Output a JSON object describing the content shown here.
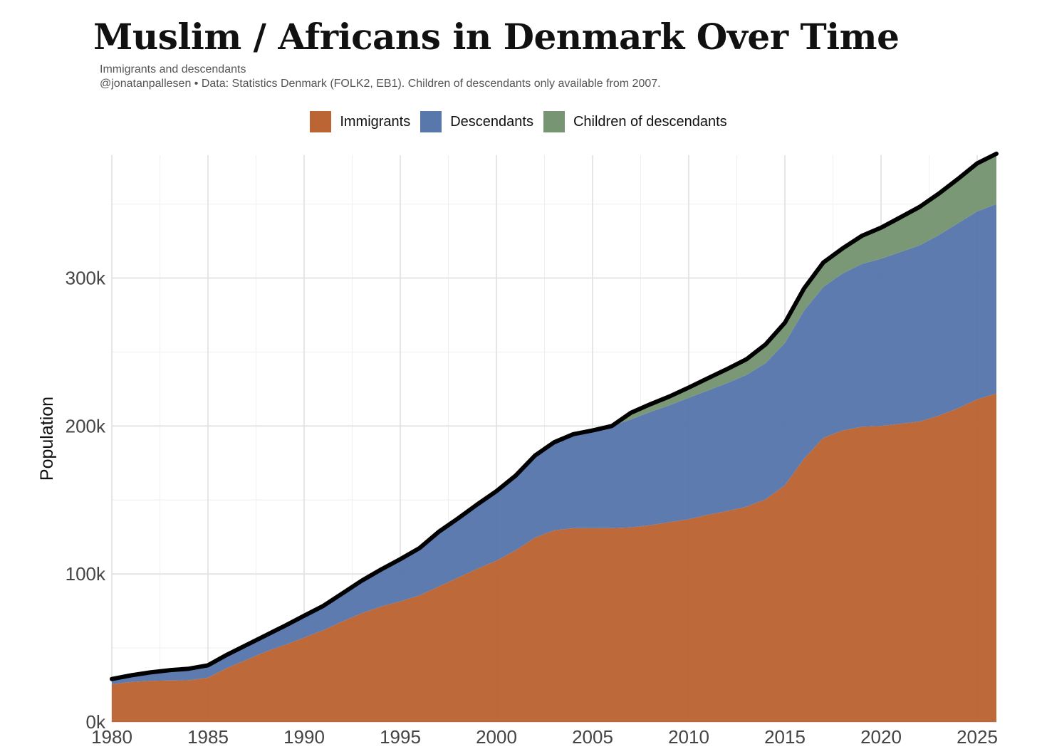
{
  "header": {
    "title": "Muslim / Africans in Denmark Over Time",
    "subtitle": "Immigrants and descendants",
    "caption": "@jonatanpallesen • Data: Statistics Denmark (FOLK2, EB1). Children of descendants only available from 2007."
  },
  "legend": {
    "position": "top-center",
    "items": [
      {
        "label": "Immigrants",
        "color": "#bb6434"
      },
      {
        "label": "Descendants",
        "color": "#5877ab"
      },
      {
        "label": "Children of descendants",
        "color": "#779572"
      }
    ]
  },
  "chart_data": {
    "type": "area",
    "stacked": true,
    "title": "Muslim / Africans in Denmark Over Time",
    "subtitle": "Immigrants and descendants",
    "xlabel": "",
    "ylabel": "Population",
    "xlim": [
      1980,
      2026
    ],
    "ylim": [
      0,
      383000
    ],
    "x_ticks": [
      1980,
      1985,
      1990,
      1995,
      2000,
      2005,
      2010,
      2015,
      2020,
      2025
    ],
    "x_tick_labels": [
      "1980",
      "1985",
      "1990",
      "1995",
      "2000",
      "2005",
      "2010",
      "2015",
      "2020",
      "2025"
    ],
    "y_ticks": [
      0,
      100000,
      200000,
      300000
    ],
    "y_tick_labels": [
      "0k",
      "100k",
      "200k",
      "300k"
    ],
    "grid": true,
    "legend_position": "top-center",
    "total_line_color": "#000000",
    "x": [
      1980,
      1981,
      1982,
      1983,
      1984,
      1985,
      1986,
      1987,
      1988,
      1989,
      1990,
      1991,
      1992,
      1993,
      1994,
      1995,
      1996,
      1997,
      1998,
      1999,
      2000,
      2001,
      2002,
      2003,
      2004,
      2005,
      2006,
      2007,
      2008,
      2009,
      2010,
      2011,
      2012,
      2013,
      2014,
      2015,
      2016,
      2017,
      2018,
      2019,
      2020,
      2021,
      2022,
      2023,
      2024,
      2025,
      2026
    ],
    "series": [
      {
        "name": "Immigrants",
        "color": "#bb6434",
        "values": [
          25500,
          27000,
          27800,
          28000,
          28200,
          30000,
          36500,
          42000,
          47500,
          52000,
          57000,
          62000,
          68000,
          73500,
          78000,
          81500,
          85500,
          91500,
          97500,
          103500,
          109000,
          116000,
          124500,
          129500,
          131000,
          131000,
          131000,
          131500,
          133000,
          135000,
          137000,
          140000,
          142500,
          145500,
          150500,
          160000,
          178000,
          192000,
          197000,
          199500,
          200000,
          201500,
          203000,
          207000,
          212000,
          218000,
          222000
        ]
      },
      {
        "name": "Descendants",
        "color": "#5877ab",
        "values": [
          3500,
          4500,
          5700,
          7000,
          7800,
          8300,
          9000,
          10000,
          11000,
          13000,
          14800,
          16500,
          19000,
          22000,
          25000,
          28500,
          32000,
          37000,
          40000,
          43500,
          47000,
          50500,
          55500,
          59500,
          63500,
          66000,
          69000,
          73000,
          76500,
          79000,
          82000,
          84000,
          86500,
          89000,
          92000,
          96000,
          100000,
          102000,
          106000,
          110000,
          113000,
          116000,
          119000,
          122000,
          125000,
          127000,
          128000
        ]
      },
      {
        "name": "Children of descendants",
        "color": "#779572",
        "values": [
          0,
          0,
          0,
          0,
          0,
          0,
          0,
          0,
          0,
          0,
          0,
          0,
          0,
          0,
          0,
          0,
          0,
          0,
          0,
          0,
          0,
          0,
          0,
          0,
          0,
          0,
          0,
          4500,
          5200,
          6000,
          7000,
          8300,
          9500,
          10600,
          12700,
          13800,
          15000,
          16500,
          17000,
          19000,
          21000,
          23500,
          26000,
          28000,
          30000,
          32500,
          34000
        ]
      }
    ]
  }
}
